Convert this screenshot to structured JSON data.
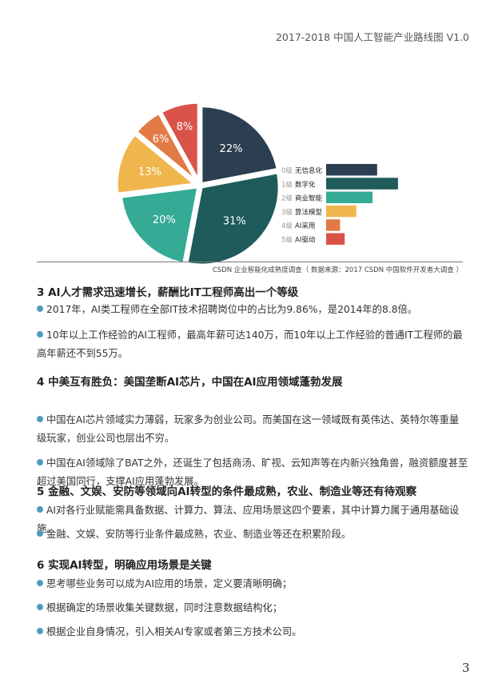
{
  "header": "2017-2018 中国人工智能产业路线图 V1.0",
  "chart_data": {
    "type": "pie",
    "slices": [
      {
        "label": "0级 无信息化",
        "value": 22,
        "display": "22%",
        "color": "#2b3f50"
      },
      {
        "label": "1级 数字化",
        "value": 31,
        "display": "31%",
        "color": "#1f5b5b"
      },
      {
        "label": "2级 商业智能",
        "value": 20,
        "display": "20%",
        "color": "#35aa95"
      },
      {
        "label": "3级 算法模型",
        "value": 13,
        "display": "13%",
        "color": "#f0b64e"
      },
      {
        "label": "4级 AI采用",
        "value": 6,
        "display": "6%",
        "color": "#e27a45"
      },
      {
        "label": "5级 AI驱动",
        "value": 8,
        "display": "8%",
        "color": "#d9534a"
      }
    ],
    "legend_bars": [
      {
        "level": "0级",
        "name": "无信息化",
        "value": 22
      },
      {
        "level": "1级",
        "name": "数字化",
        "value": 31
      },
      {
        "level": "2级",
        "name": "商业智能",
        "value": 20
      },
      {
        "level": "3级",
        "name": "算法模型",
        "value": 13
      },
      {
        "level": "4级",
        "name": "AI采用",
        "value": 6
      },
      {
        "level": "5级",
        "name": "AI驱动",
        "value": 8
      }
    ],
    "caption": "CSDN 企业智能化成熟度调查（ 数据来源：2017 CSDN 中国软件开发者大调查 ）"
  },
  "sections": [
    {
      "title": "3 AI人才需求迅速增长，薪酬比IT工程师高出一个等级",
      "bullets": [
        "2017年，AI类工程师在全部IT技术招聘岗位中的占比为9.86%，是2014年的8.8倍。",
        "10年以上工作经验的AI工程师，最高年薪可达140万，而10年以上工作经验的普通IT工程师的最高年薪还不到55万。"
      ]
    },
    {
      "title": "4 中美互有胜负：美国垄断AI芯片，中国在AI应用领域蓬勃发展",
      "bullets": [
        "中国在AI芯片领域实力薄弱，玩家多为创业公司。而美国在这一领域既有英伟达、英特尔等重量级玩家，创业公司也层出不穷。",
        "中国在AI领域除了BAT之外，还诞生了包括商汤、旷视、云知声等在内新兴独角兽，融资额度甚至超过美国同行，支撑AI应用蓬勃发展。"
      ]
    },
    {
      "title": "5 金融、文娱、安防等领域向AI转型的条件最成熟，农业、制造业等还有待观察",
      "bullets": [
        "AI对各行业赋能需具备数据、计算力、算法、应用场景这四个要素，其中计算力属于通用基础设施。",
        "金融、文娱、安防等行业条件最成熟，农业、制造业等还在积累阶段。"
      ]
    },
    {
      "title": "6  实现AI转型，明确应用场景是关键",
      "bullets": [
        "思考哪些业务可以成为AI应用的场景，定义要清晰明确；",
        "根据确定的场景收集关键数据，同时注意数据结构化；",
        "根据企业自身情况，引入相关AI专家或者第三方技术公司。"
      ]
    }
  ],
  "page_number": "3"
}
